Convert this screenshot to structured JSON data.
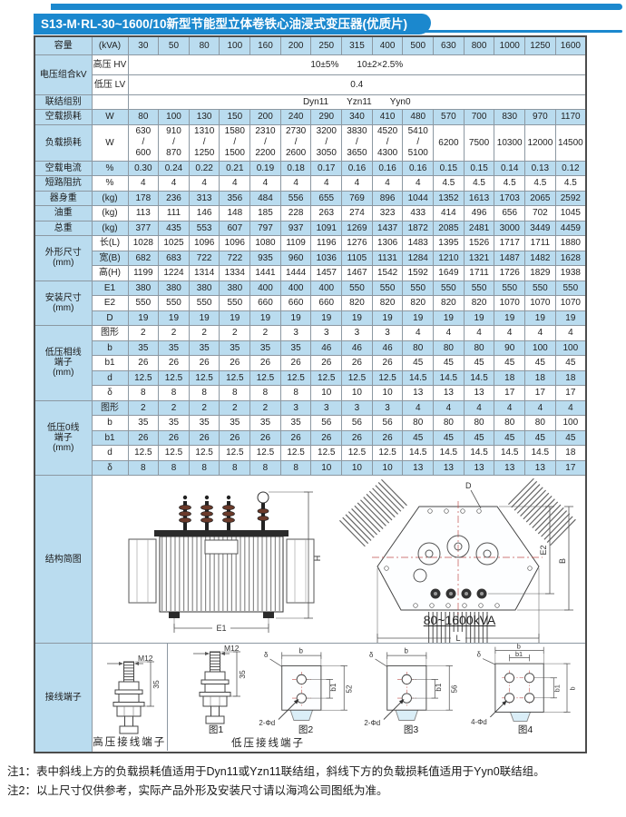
{
  "title": "S13-M·RL-30~1600/10新型节能型立体卷铁心油浸式变压器(优质片)",
  "table": {
    "rows": [
      {
        "label": "容量",
        "sub": "(kVA)",
        "cells": [
          "30",
          "50",
          "80",
          "100",
          "160",
          "200",
          "250",
          "315",
          "400",
          "500",
          "630",
          "800",
          "1000",
          "1250",
          "1600"
        ]
      },
      {
        "label": "电压组合kV",
        "span": 2,
        "sub": "高压 HV",
        "merged": "10±5%　　10±2×2.5%"
      },
      {
        "sub": "低压 LV",
        "merged": "0.4"
      },
      {
        "label": "联结组别",
        "sub": "",
        "merged": "Dyn11　　Yzn11　　Yyn0"
      },
      {
        "label": "空载损耗",
        "sub": "W",
        "cells": [
          "80",
          "100",
          "130",
          "150",
          "200",
          "240",
          "290",
          "340",
          "410",
          "480",
          "570",
          "700",
          "830",
          "970",
          "1170"
        ]
      },
      {
        "label": "负载损耗",
        "sub": "W",
        "cells": [
          "630/600",
          "910/870",
          "1310/1250",
          "1580/1500",
          "2310/2200",
          "2730/2600",
          "3200/3050",
          "3830/3650",
          "4520/4300",
          "5410/5100",
          "6200",
          "7500",
          "10300",
          "12000",
          "14500"
        ]
      },
      {
        "label": "空载电流",
        "sub": "%",
        "cells": [
          "0.30",
          "0.24",
          "0.22",
          "0.21",
          "0.19",
          "0.18",
          "0.17",
          "0.16",
          "0.16",
          "0.16",
          "0.15",
          "0.15",
          "0.14",
          "0.13",
          "0.12"
        ]
      },
      {
        "label": "短路阻抗",
        "sub": "%",
        "cells": [
          "4",
          "4",
          "4",
          "4",
          "4",
          "4",
          "4",
          "4",
          "4",
          "4",
          "4.5",
          "4.5",
          "4.5",
          "4.5",
          "4.5"
        ]
      },
      {
        "label": "器身重",
        "sub": "(kg)",
        "cells": [
          "178",
          "236",
          "313",
          "356",
          "484",
          "556",
          "655",
          "769",
          "896",
          "1044",
          "1352",
          "1613",
          "1703",
          "2065",
          "2592"
        ]
      },
      {
        "label": "油重",
        "sub": "(kg)",
        "cells": [
          "113",
          "111",
          "146",
          "148",
          "185",
          "228",
          "263",
          "274",
          "323",
          "433",
          "414",
          "496",
          "656",
          "702",
          "1045"
        ]
      },
      {
        "label": "总重",
        "sub": "(kg)",
        "cells": [
          "377",
          "435",
          "553",
          "607",
          "797",
          "937",
          "1091",
          "1269",
          "1437",
          "1872",
          "2085",
          "2481",
          "3000",
          "3449",
          "4459"
        ]
      },
      {
        "label": "外形尺寸\n(mm)",
        "span": 3,
        "sub": "长(L)",
        "cells": [
          "1028",
          "1025",
          "1096",
          "1096",
          "1080",
          "1109",
          "1196",
          "1276",
          "1306",
          "1483",
          "1395",
          "1526",
          "1717",
          "1711",
          "1880"
        ]
      },
      {
        "sub": "宽(B)",
        "cells": [
          "682",
          "683",
          "722",
          "722",
          "935",
          "960",
          "1036",
          "1105",
          "1131",
          "1284",
          "1210",
          "1321",
          "1487",
          "1482",
          "1628"
        ]
      },
      {
        "sub": "高(H)",
        "cells": [
          "1199",
          "1224",
          "1314",
          "1334",
          "1441",
          "1444",
          "1457",
          "1467",
          "1542",
          "1592",
          "1649",
          "1711",
          "1726",
          "1829",
          "1938"
        ]
      },
      {
        "label": "安装尺寸\n(mm)",
        "span": 3,
        "sub": "E1",
        "cells": [
          "380",
          "380",
          "380",
          "380",
          "400",
          "400",
          "400",
          "550",
          "550",
          "550",
          "550",
          "550",
          "550",
          "550",
          "550"
        ]
      },
      {
        "sub": "E2",
        "cells": [
          "550",
          "550",
          "550",
          "550",
          "660",
          "660",
          "660",
          "820",
          "820",
          "820",
          "820",
          "820",
          "1070",
          "1070",
          "1070"
        ]
      },
      {
        "sub": "D",
        "cells": [
          "19",
          "19",
          "19",
          "19",
          "19",
          "19",
          "19",
          "19",
          "19",
          "19",
          "19",
          "19",
          "19",
          "19",
          "19"
        ]
      },
      {
        "label": "低压相线\n端子\n(mm)",
        "span": 5,
        "sub": "图形",
        "cells": [
          "2",
          "2",
          "2",
          "2",
          "2",
          "3",
          "3",
          "3",
          "3",
          "4",
          "4",
          "4",
          "4",
          "4",
          "4"
        ]
      },
      {
        "sub": "b",
        "cells": [
          "35",
          "35",
          "35",
          "35",
          "35",
          "35",
          "46",
          "46",
          "46",
          "80",
          "80",
          "80",
          "90",
          "100",
          "100"
        ]
      },
      {
        "sub": "b1",
        "cells": [
          "26",
          "26",
          "26",
          "26",
          "26",
          "26",
          "26",
          "26",
          "26",
          "45",
          "45",
          "45",
          "45",
          "45",
          "45"
        ]
      },
      {
        "sub": "d",
        "cells": [
          "12.5",
          "12.5",
          "12.5",
          "12.5",
          "12.5",
          "12.5",
          "12.5",
          "12.5",
          "12.5",
          "14.5",
          "14.5",
          "14.5",
          "18",
          "18",
          "18"
        ]
      },
      {
        "sub": "δ",
        "cells": [
          "8",
          "8",
          "8",
          "8",
          "8",
          "8",
          "10",
          "10",
          "10",
          "13",
          "13",
          "13",
          "17",
          "17",
          "17"
        ]
      },
      {
        "label": "低压0线\n端子\n(mm)",
        "span": 5,
        "sub": "图形",
        "cells": [
          "2",
          "2",
          "2",
          "2",
          "2",
          "3",
          "3",
          "3",
          "3",
          "4",
          "4",
          "4",
          "4",
          "4",
          "4"
        ]
      },
      {
        "sub": "b",
        "cells": [
          "35",
          "35",
          "35",
          "35",
          "35",
          "35",
          "56",
          "56",
          "56",
          "80",
          "80",
          "80",
          "80",
          "80",
          "100"
        ]
      },
      {
        "sub": "b1",
        "cells": [
          "26",
          "26",
          "26",
          "26",
          "26",
          "26",
          "26",
          "26",
          "26",
          "45",
          "45",
          "45",
          "45",
          "45",
          "45"
        ]
      },
      {
        "sub": "d",
        "cells": [
          "12.5",
          "12.5",
          "12.5",
          "12.5",
          "12.5",
          "12.5",
          "12.5",
          "12.5",
          "12.5",
          "14.5",
          "14.5",
          "14.5",
          "14.5",
          "14.5",
          "18"
        ]
      },
      {
        "sub": "δ",
        "cells": [
          "8",
          "8",
          "8",
          "8",
          "8",
          "8",
          "10",
          "10",
          "10",
          "13",
          "13",
          "13",
          "13",
          "13",
          "17"
        ]
      }
    ]
  },
  "diagrams": {
    "structure_label": "结构简图",
    "terminal_label": "接线端子",
    "top_view_caption": "80~1600kVA",
    "hv_caption": "高压接线端子",
    "lv_caption": "低压接线端子",
    "figure_labels": [
      "图1",
      "图2",
      "图3",
      "图4"
    ],
    "dims": {
      "H": "H",
      "E1": "E1",
      "E2": "E2",
      "B": "B",
      "L": "L",
      "D": "D",
      "M12": "M12",
      "H35": "35",
      "b": "b",
      "b1": "b1",
      "h52": "52",
      "h56": "56",
      "delta": "δ",
      "holes2": "2-Φd",
      "holes4": "4-Φd"
    }
  },
  "notes": [
    "注1：表中斜线上方的负载损耗值适用于Dyn11或Yzn11联结组，斜线下方的负载损耗值适用于Yyn0联结组。",
    "注2：以上尺寸仅供参考，实际产品外形及安装尺寸请以海鸿公司图纸为准。"
  ],
  "colors": {
    "accent_blue": "#1b88ce",
    "row_blue": "#badcef"
  }
}
